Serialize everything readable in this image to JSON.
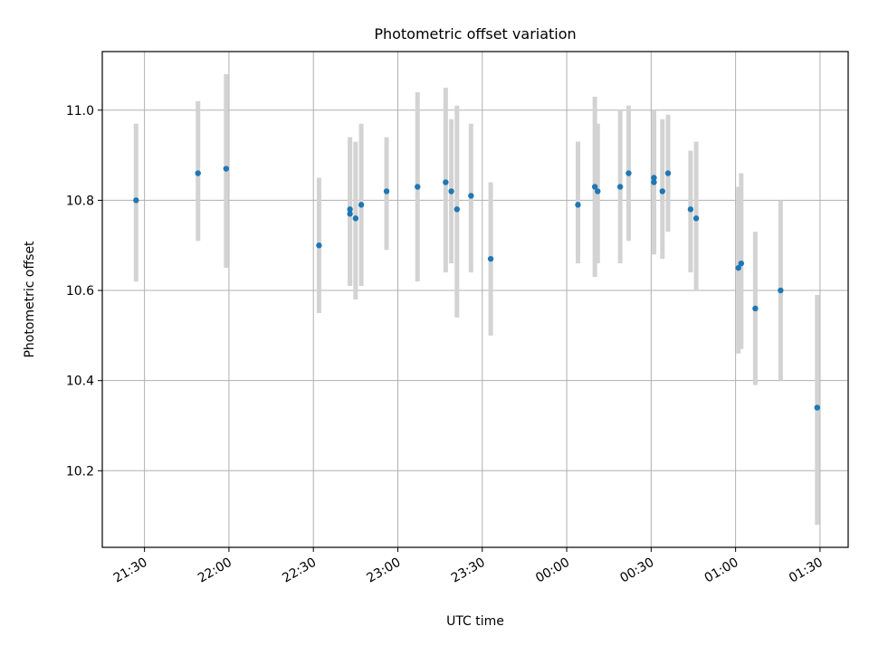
{
  "chart_data": {
    "type": "scatter",
    "title": "Photometric offset variation",
    "xlabel": "UTC time",
    "ylabel": "Photometric offset",
    "grid": true,
    "x_tick_labels": [
      "21:30",
      "22:00",
      "22:30",
      "23:00",
      "23:30",
      "00:00",
      "00:30",
      "01:00",
      "01:30"
    ],
    "x_tick_values": [
      "21:30",
      "22:00",
      "22:30",
      "23:00",
      "23:30",
      "00:00",
      "00:30",
      "01:00",
      "01:30"
    ],
    "y_tick_labels": [
      "10.2",
      "10.4",
      "10.6",
      "10.8",
      "11.0"
    ],
    "y_tick_values": [
      10.2,
      10.4,
      10.6,
      10.8,
      11.0
    ],
    "xlim": [
      "21:15",
      "01:40"
    ],
    "ylim": [
      10.03,
      11.13
    ],
    "point_color": "#1f77b4",
    "errorbar_color": "#d3d3d3",
    "points": [
      {
        "x": "21:27",
        "y": 10.8,
        "ylow": 10.62,
        "yhigh": 10.97
      },
      {
        "x": "21:49",
        "y": 10.86,
        "ylow": 10.71,
        "yhigh": 11.02
      },
      {
        "x": "21:59",
        "y": 10.87,
        "ylow": 10.65,
        "yhigh": 11.08
      },
      {
        "x": "22:32",
        "y": 10.7,
        "ylow": 10.55,
        "yhigh": 10.85
      },
      {
        "x": "22:43",
        "y": 10.78,
        "ylow": 10.61,
        "yhigh": 10.94
      },
      {
        "x": "22:43",
        "y": 10.77,
        "ylow": 10.61,
        "yhigh": 10.93
      },
      {
        "x": "22:45",
        "y": 10.76,
        "ylow": 10.58,
        "yhigh": 10.93
      },
      {
        "x": "22:47",
        "y": 10.79,
        "ylow": 10.61,
        "yhigh": 10.97
      },
      {
        "x": "22:56",
        "y": 10.82,
        "ylow": 10.69,
        "yhigh": 10.94
      },
      {
        "x": "23:07",
        "y": 10.83,
        "ylow": 10.62,
        "yhigh": 11.04
      },
      {
        "x": "23:17",
        "y": 10.84,
        "ylow": 10.64,
        "yhigh": 11.05
      },
      {
        "x": "23:19",
        "y": 10.82,
        "ylow": 10.66,
        "yhigh": 10.98
      },
      {
        "x": "23:21",
        "y": 10.78,
        "ylow": 10.54,
        "yhigh": 11.01
      },
      {
        "x": "23:26",
        "y": 10.81,
        "ylow": 10.64,
        "yhigh": 10.97
      },
      {
        "x": "23:33",
        "y": 10.67,
        "ylow": 10.5,
        "yhigh": 10.84
      },
      {
        "x": "00:04",
        "y": 10.79,
        "ylow": 10.66,
        "yhigh": 10.93
      },
      {
        "x": "00:10",
        "y": 10.83,
        "ylow": 10.63,
        "yhigh": 11.03
      },
      {
        "x": "00:11",
        "y": 10.82,
        "ylow": 10.66,
        "yhigh": 10.97
      },
      {
        "x": "00:19",
        "y": 10.83,
        "ylow": 10.66,
        "yhigh": 11.0
      },
      {
        "x": "00:22",
        "y": 10.86,
        "ylow": 10.71,
        "yhigh": 11.01
      },
      {
        "x": "00:31",
        "y": 10.85,
        "ylow": 10.68,
        "yhigh": 11.0
      },
      {
        "x": "00:31",
        "y": 10.84,
        "ylow": 10.68,
        "yhigh": 10.99
      },
      {
        "x": "00:34",
        "y": 10.82,
        "ylow": 10.67,
        "yhigh": 10.98
      },
      {
        "x": "00:36",
        "y": 10.86,
        "ylow": 10.73,
        "yhigh": 10.99
      },
      {
        "x": "00:44",
        "y": 10.78,
        "ylow": 10.64,
        "yhigh": 10.91
      },
      {
        "x": "00:46",
        "y": 10.76,
        "ylow": 10.6,
        "yhigh": 10.93
      },
      {
        "x": "01:01",
        "y": 10.65,
        "ylow": 10.46,
        "yhigh": 10.83
      },
      {
        "x": "01:02",
        "y": 10.66,
        "ylow": 10.47,
        "yhigh": 10.86
      },
      {
        "x": "01:07",
        "y": 10.56,
        "ylow": 10.39,
        "yhigh": 10.73
      },
      {
        "x": "01:16",
        "y": 10.6,
        "ylow": 10.4,
        "yhigh": 10.8
      },
      {
        "x": "01:29",
        "y": 10.34,
        "ylow": 10.08,
        "yhigh": 10.59
      }
    ]
  }
}
